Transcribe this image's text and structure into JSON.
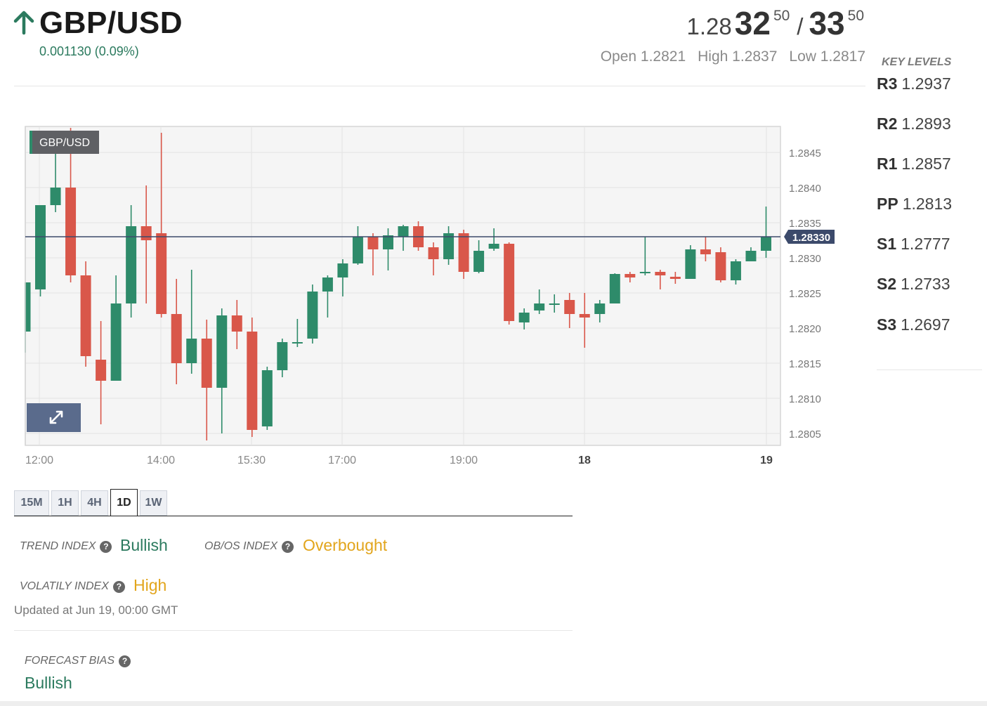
{
  "header": {
    "pair": "GBP/USD",
    "change": "0.001130 (0.09%)",
    "bid_prefix": "1.28",
    "bid_big": "32",
    "bid_sup": "50",
    "separator": "/",
    "ask_big": "33",
    "ask_sup": "50",
    "open": "Open 1.2821",
    "high": "High 1.2837",
    "low": "Low 1.2817",
    "direction_icon": "arrow-up-icon"
  },
  "key_levels": {
    "title": "KEY LEVELS",
    "items": [
      {
        "label": "R3",
        "value": "1.2937"
      },
      {
        "label": "R2",
        "value": "1.2893"
      },
      {
        "label": "R1",
        "value": "1.2857"
      },
      {
        "label": "PP",
        "value": "1.2813"
      },
      {
        "label": "S1",
        "value": "1.2777"
      },
      {
        "label": "S2",
        "value": "1.2733"
      },
      {
        "label": "S3",
        "value": "1.2697"
      }
    ]
  },
  "chart_data": {
    "type": "candlestick",
    "symbol_badge": "GBP/USD",
    "current_price_label": "1.28330",
    "current_price": 1.2833,
    "ylim": [
      1.2802,
      1.2848
    ],
    "y_ticks": [
      "1.2845",
      "1.2840",
      "1.2835",
      "1.2830",
      "1.2825",
      "1.2820",
      "1.2815",
      "1.2810",
      "1.2805"
    ],
    "x_tick_labels": [
      {
        "label": "12:00",
        "bold": false
      },
      {
        "label": "14:00",
        "bold": false
      },
      {
        "label": "15:30",
        "bold": false
      },
      {
        "label": "17:00",
        "bold": false
      },
      {
        "label": "19:00",
        "bold": false
      },
      {
        "label": "18",
        "bold": true
      },
      {
        "label": "19",
        "bold": true
      }
    ],
    "colors": {
      "up": "#2e8b6a",
      "down": "#d9574a",
      "price_line": "#3c4a6b",
      "badge": "#3c4a6b"
    },
    "candles": [
      {
        "o": 1.28195,
        "h": 1.28265,
        "l": 1.28165,
        "c": 1.28265
      },
      {
        "o": 1.28255,
        "h": 1.28375,
        "l": 1.28245,
        "c": 1.28375
      },
      {
        "o": 1.28375,
        "h": 1.28465,
        "l": 1.28365,
        "c": 1.284
      },
      {
        "o": 1.284,
        "h": 1.28485,
        "l": 1.28265,
        "c": 1.28275
      },
      {
        "o": 1.28275,
        "h": 1.28295,
        "l": 1.28145,
        "c": 1.2816
      },
      {
        "o": 1.28155,
        "h": 1.2821,
        "l": 1.28063,
        "c": 1.28125
      },
      {
        "o": 1.28125,
        "h": 1.28275,
        "l": 1.28125,
        "c": 1.28235
      },
      {
        "o": 1.28235,
        "h": 1.28375,
        "l": 1.28215,
        "c": 1.28345
      },
      {
        "o": 1.28345,
        "h": 1.28403,
        "l": 1.28235,
        "c": 1.28325
      },
      {
        "o": 1.28335,
        "h": 1.28478,
        "l": 1.28215,
        "c": 1.2822
      },
      {
        "o": 1.2822,
        "h": 1.2827,
        "l": 1.2812,
        "c": 1.2815
      },
      {
        "o": 1.2815,
        "h": 1.28283,
        "l": 1.28135,
        "c": 1.28185
      },
      {
        "o": 1.28185,
        "h": 1.28212,
        "l": 1.2804,
        "c": 1.28115
      },
      {
        "o": 1.28115,
        "h": 1.28228,
        "l": 1.2805,
        "c": 1.28218
      },
      {
        "o": 1.28218,
        "h": 1.2824,
        "l": 1.2817,
        "c": 1.28195
      },
      {
        "o": 1.28195,
        "h": 1.28215,
        "l": 1.28045,
        "c": 1.28055
      },
      {
        "o": 1.2806,
        "h": 1.28145,
        "l": 1.28055,
        "c": 1.2814
      },
      {
        "o": 1.2814,
        "h": 1.28185,
        "l": 1.2813,
        "c": 1.2818
      },
      {
        "o": 1.2818,
        "h": 1.28213,
        "l": 1.28173,
        "c": 1.2818
      },
      {
        "o": 1.28185,
        "h": 1.28262,
        "l": 1.28178,
        "c": 1.28252
      },
      {
        "o": 1.28252,
        "h": 1.28275,
        "l": 1.28215,
        "c": 1.28272
      },
      {
        "o": 1.28272,
        "h": 1.28298,
        "l": 1.28245,
        "c": 1.28292
      },
      {
        "o": 1.28292,
        "h": 1.28345,
        "l": 1.2829,
        "c": 1.2833
      },
      {
        "o": 1.2833,
        "h": 1.28335,
        "l": 1.28275,
        "c": 1.28312
      },
      {
        "o": 1.28312,
        "h": 1.28342,
        "l": 1.28282,
        "c": 1.28332
      },
      {
        "o": 1.2833,
        "h": 1.28347,
        "l": 1.2831,
        "c": 1.28345
      },
      {
        "o": 1.28345,
        "h": 1.28352,
        "l": 1.2831,
        "c": 1.28315
      },
      {
        "o": 1.28315,
        "h": 1.28322,
        "l": 1.28275,
        "c": 1.28298
      },
      {
        "o": 1.28298,
        "h": 1.28345,
        "l": 1.2829,
        "c": 1.28335
      },
      {
        "o": 1.28335,
        "h": 1.2834,
        "l": 1.2827,
        "c": 1.2828
      },
      {
        "o": 1.2828,
        "h": 1.28325,
        "l": 1.28278,
        "c": 1.2831
      },
      {
        "o": 1.28313,
        "h": 1.28342,
        "l": 1.2831,
        "c": 1.2832
      },
      {
        "o": 1.2832,
        "h": 1.28322,
        "l": 1.28205,
        "c": 1.2821
      },
      {
        "o": 1.28208,
        "h": 1.28228,
        "l": 1.28198,
        "c": 1.28222
      },
      {
        "o": 1.28225,
        "h": 1.28255,
        "l": 1.2822,
        "c": 1.28235
      },
      {
        "o": 1.28235,
        "h": 1.28248,
        "l": 1.28222,
        "c": 1.28235
      },
      {
        "o": 1.2824,
        "h": 1.2825,
        "l": 1.282,
        "c": 1.2822
      },
      {
        "o": 1.2822,
        "h": 1.2825,
        "l": 1.28172,
        "c": 1.28215
      },
      {
        "o": 1.2822,
        "h": 1.2824,
        "l": 1.28208,
        "c": 1.28235
      },
      {
        "o": 1.28235,
        "h": 1.28278,
        "l": 1.28235,
        "c": 1.28277
      },
      {
        "o": 1.28277,
        "h": 1.2828,
        "l": 1.28265,
        "c": 1.28272
      },
      {
        "o": 1.2828,
        "h": 1.2833,
        "l": 1.28275,
        "c": 1.2828
      },
      {
        "o": 1.2828,
        "h": 1.28283,
        "l": 1.28255,
        "c": 1.28275
      },
      {
        "o": 1.28273,
        "h": 1.2828,
        "l": 1.28263,
        "c": 1.2827
      },
      {
        "o": 1.2827,
        "h": 1.28318,
        "l": 1.2827,
        "c": 1.28312
      },
      {
        "o": 1.28312,
        "h": 1.2833,
        "l": 1.28295,
        "c": 1.28305
      },
      {
        "o": 1.28308,
        "h": 1.28315,
        "l": 1.28265,
        "c": 1.28268
      },
      {
        "o": 1.28268,
        "h": 1.28298,
        "l": 1.28262,
        "c": 1.28295
      },
      {
        "o": 1.28295,
        "h": 1.28315,
        "l": 1.28298,
        "c": 1.2831
      },
      {
        "o": 1.2831,
        "h": 1.28373,
        "l": 1.283,
        "c": 1.2833
      }
    ]
  },
  "timeframes": {
    "items": [
      "15M",
      "1H",
      "4H",
      "1D",
      "1W"
    ],
    "active": "1D"
  },
  "indices": {
    "trend_label": "TREND INDEX",
    "trend_value": "Bullish",
    "obos_label": "OB/OS INDEX",
    "obos_value": "Overbought",
    "volatility_label": "VOLATILY INDEX",
    "volatility_value": "High",
    "updated": "Updated at Jun 19, 00:00 GMT",
    "forecast_label": "FORECAST BIAS",
    "forecast_value": "Bullish",
    "help_icon": "?"
  }
}
